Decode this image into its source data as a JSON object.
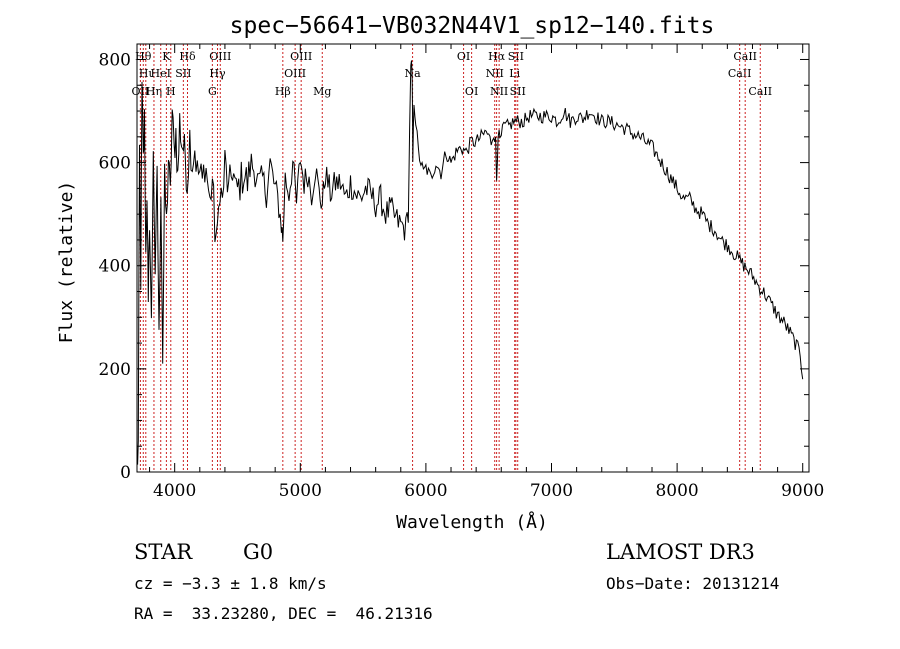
{
  "chart_data": {
    "type": "line",
    "title": "spec−56641−VB032N44V1_sp12−140.fits",
    "xlabel": "Wavelength (Å)",
    "ylabel": "Flux (relative)",
    "xlim": [
      3700,
      9050
    ],
    "ylim": [
      0,
      830
    ],
    "xticks": [
      4000,
      5000,
      6000,
      7000,
      8000,
      9000
    ],
    "yticks": [
      0,
      200,
      400,
      600,
      800
    ],
    "grid": false,
    "series": [
      {
        "color": "#000000",
        "x": [
          3700,
          3710,
          3720,
          3730,
          3740,
          3750,
          3760,
          3770,
          3780,
          3790,
          3800,
          3815,
          3830,
          3845,
          3860,
          3875,
          3890,
          3905,
          3920,
          3935,
          3950,
          3965,
          3980,
          3995,
          4010,
          4025,
          4040,
          4055,
          4070,
          4085,
          4100,
          4120,
          4140,
          4160,
          4180,
          4200,
          4220,
          4240,
          4260,
          4280,
          4300,
          4320,
          4340,
          4360,
          4380,
          4400,
          4430,
          4460,
          4490,
          4520,
          4550,
          4580,
          4610,
          4640,
          4670,
          4700,
          4730,
          4760,
          4790,
          4820,
          4850,
          4861,
          4880,
          4910,
          4940,
          4970,
          5000,
          5030,
          5060,
          5090,
          5120,
          5150,
          5175,
          5200,
          5240,
          5280,
          5320,
          5360,
          5400,
          5440,
          5480,
          5520,
          5560,
          5600,
          5640,
          5680,
          5720,
          5760,
          5800,
          5840,
          5860,
          5880,
          5890,
          5896,
          5905,
          5920,
          5940,
          5960,
          5980,
          6000,
          6040,
          6080,
          6120,
          6160,
          6200,
          6240,
          6280,
          6320,
          6360,
          6400,
          6440,
          6480,
          6520,
          6540,
          6555,
          6563,
          6575,
          6590,
          6620,
          6660,
          6700,
          6740,
          6780,
          6820,
          6860,
          6900,
          6950,
          7000,
          7050,
          7100,
          7150,
          7200,
          7250,
          7300,
          7350,
          7400,
          7450,
          7500,
          7550,
          7600,
          7650,
          7700,
          7750,
          7800,
          7850,
          7900,
          7950,
          8000,
          8050,
          8100,
          8150,
          8200,
          8250,
          8300,
          8350,
          8400,
          8450,
          8500,
          8550,
          8600,
          8650,
          8700,
          8750,
          8800,
          8850,
          8900,
          8950,
          8980,
          9000
        ],
        "y": [
          10,
          50,
          620,
          380,
          740,
          600,
          680,
          420,
          550,
          300,
          500,
          280,
          640,
          350,
          600,
          250,
          560,
          220,
          560,
          480,
          610,
          530,
          700,
          620,
          660,
          570,
          680,
          640,
          630,
          610,
          560,
          650,
          600,
          630,
          580,
          580,
          560,
          600,
          570,
          520,
          570,
          470,
          450,
          560,
          520,
          600,
          540,
          590,
          540,
          560,
          580,
          560,
          600,
          580,
          560,
          570,
          540,
          600,
          560,
          530,
          480,
          450,
          570,
          540,
          600,
          520,
          610,
          560,
          580,
          540,
          590,
          540,
          520,
          580,
          540,
          560,
          560,
          530,
          560,
          540,
          530,
          550,
          540,
          520,
          530,
          500,
          510,
          490,
          480,
          470,
          510,
          800,
          760,
          600,
          720,
          680,
          620,
          600,
          580,
          590,
          570,
          600,
          580,
          620,
          600,
          620,
          630,
          620,
          640,
          640,
          650,
          660,
          640,
          660,
          640,
          570,
          660,
          640,
          670,
          670,
          680,
          680,
          680,
          690,
          690,
          690,
          690,
          690,
          680,
          700,
          680,
          690,
          685,
          700,
          690,
          680,
          680,
          675,
          670,
          665,
          655,
          650,
          640,
          630,
          610,
          590,
          570,
          550,
          530,
          530,
          510,
          500,
          480,
          470,
          450,
          440,
          425,
          410,
          395,
          380,
          360,
          345,
          325,
          305,
          290,
          270,
          245,
          230,
          180
        ]
      }
    ],
    "lines": [
      {
        "x": 3727,
        "label": "OII",
        "row": 3
      },
      {
        "x": 3750,
        "label": "Hθ",
        "row": 1
      },
      {
        "x": 3770,
        "label": "Hι",
        "row": 2
      },
      {
        "x": 3835,
        "label": "Hη",
        "row": 3
      },
      {
        "x": 3889,
        "label": "HeI",
        "row": 2
      },
      {
        "x": 3934,
        "label": "K",
        "row": 1
      },
      {
        "x": 3969,
        "label": "H",
        "row": 3
      },
      {
        "x": 4069,
        "label": "SII",
        "row": 2
      },
      {
        "x": 4102,
        "label": "Hδ",
        "row": 1
      },
      {
        "x": 4300,
        "label": "G",
        "row": 3
      },
      {
        "x": 4341,
        "label": "Hγ",
        "row": 2
      },
      {
        "x": 4363,
        "label": "OIII",
        "row": 1
      },
      {
        "x": 4861,
        "label": "Hβ",
        "row": 3
      },
      {
        "x": 4959,
        "label": "OIII",
        "row": 2
      },
      {
        "x": 5007,
        "label": "OIII",
        "row": 1
      },
      {
        "x": 5175,
        "label": "Mg",
        "row": 3
      },
      {
        "x": 5894,
        "label": "Na",
        "row": 2
      },
      {
        "x": 6300,
        "label": "OI",
        "row": 1
      },
      {
        "x": 6364,
        "label": "OI",
        "row": 3
      },
      {
        "x": 6548,
        "label": "NII",
        "row": 2
      },
      {
        "x": 6563,
        "label": "Hα",
        "row": 1
      },
      {
        "x": 6583,
        "label": "NII",
        "row": 3
      },
      {
        "x": 6707,
        "label": "Li",
        "row": 2
      },
      {
        "x": 6716,
        "label": "SII",
        "row": 1
      },
      {
        "x": 6731,
        "label": "SII",
        "row": 3
      },
      {
        "x": 8498,
        "label": "CaII",
        "row": 2
      },
      {
        "x": 8542,
        "label": "CaII",
        "row": 1
      },
      {
        "x": 8662,
        "label": "CaII",
        "row": 3
      }
    ]
  },
  "info": {
    "object_class": "STAR",
    "subclass": "G0",
    "survey": "LAMOST DR3",
    "cz": "cz = −3.3 ± 1.8 km/s",
    "obs_date": "Obs−Date: 20131214",
    "coords": "RA =  33.23280, DEC =  46.21316"
  }
}
